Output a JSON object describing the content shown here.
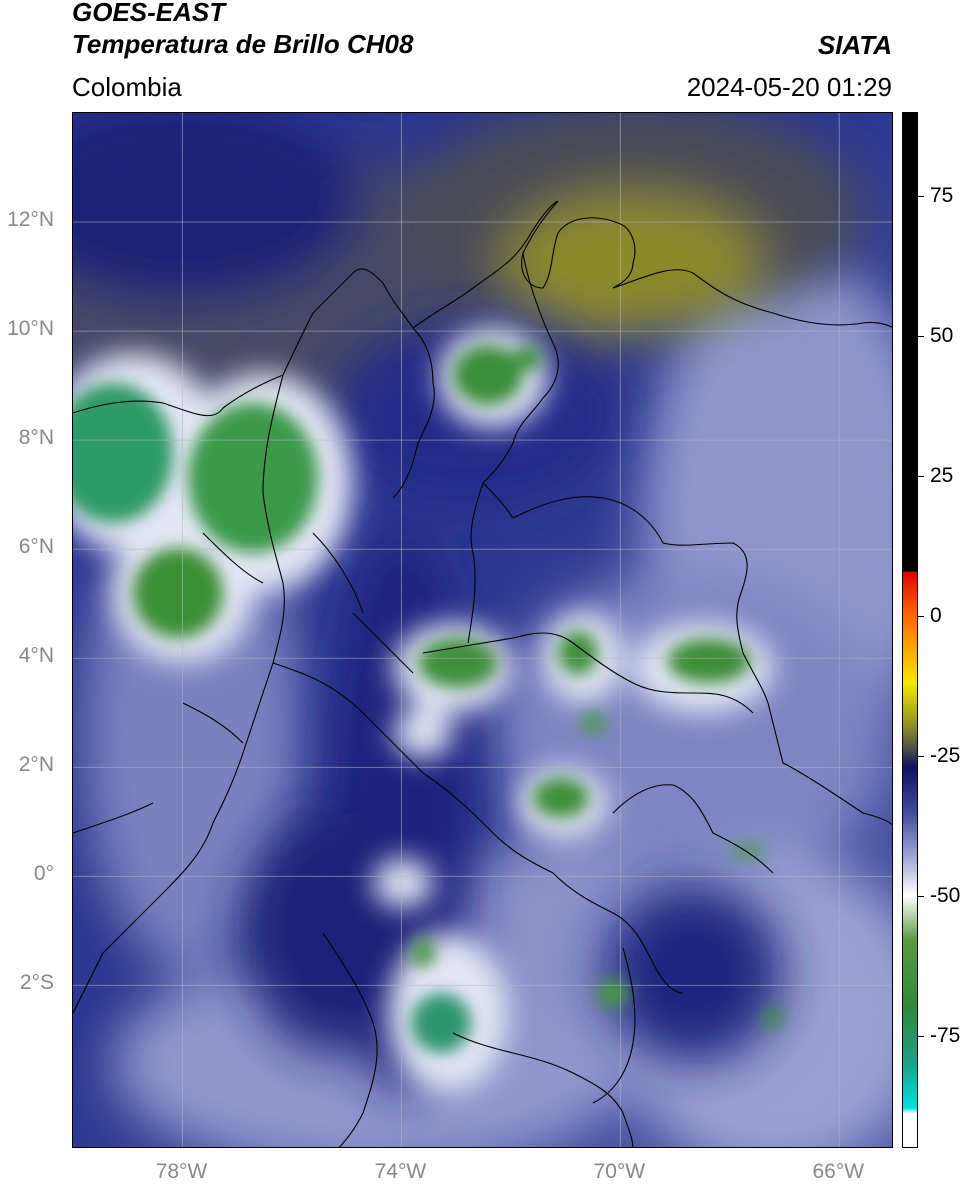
{
  "header": {
    "title_line1": "GOES-EAST",
    "title_line2": "Temperatura de Brillo CH08",
    "region": "Colombia",
    "agency": "SIATA",
    "timestamp": "2024-05-20 01:29"
  },
  "map": {
    "lon_range": [
      -80,
      -65
    ],
    "lat_range": [
      -5,
      14
    ],
    "lat_ticks": [
      {
        "value": 12,
        "label": "12°N"
      },
      {
        "value": 10,
        "label": "10°N"
      },
      {
        "value": 8,
        "label": "8°N"
      },
      {
        "value": 6,
        "label": "6°N"
      },
      {
        "value": 4,
        "label": "4°N"
      },
      {
        "value": 2,
        "label": "2°N"
      },
      {
        "value": 0,
        "label": "0°"
      },
      {
        "value": -2,
        "label": "2°S"
      }
    ],
    "lon_ticks": [
      {
        "value": -78,
        "label": "78°W"
      },
      {
        "value": -74,
        "label": "74°W"
      },
      {
        "value": -70,
        "label": "70°W"
      },
      {
        "value": -66,
        "label": "66°W"
      }
    ],
    "colors": {
      "deep_blue": "#1a237e",
      "mid_blue": "#3d4b9e",
      "pale": "#c7cbe6",
      "green": "#3f8f3a",
      "olive": "#8a8a2a",
      "grey_olive": "#5a5a55"
    }
  },
  "colorbar": {
    "range": [
      -95,
      90
    ],
    "ticks": [
      {
        "value": 75,
        "label": "75"
      },
      {
        "value": 50,
        "label": "50"
      },
      {
        "value": 25,
        "label": "25"
      },
      {
        "value": 0,
        "label": "0"
      },
      {
        "value": -25,
        "label": "-25"
      },
      {
        "value": -50,
        "label": "-50"
      },
      {
        "value": -75,
        "label": "-75"
      }
    ],
    "stops": [
      {
        "value": 90,
        "color": "#000000"
      },
      {
        "value": 8,
        "color": "#000000"
      },
      {
        "value": 7.9,
        "color": "#e00000"
      },
      {
        "value": 0,
        "color": "#ff6a00"
      },
      {
        "value": -12,
        "color": "#f5e800"
      },
      {
        "value": -20,
        "color": "#8a8a2a"
      },
      {
        "value": -24,
        "color": "#4a4a4a"
      },
      {
        "value": -27,
        "color": "#101060"
      },
      {
        "value": -35,
        "color": "#3d4b9e"
      },
      {
        "value": -45,
        "color": "#b8bde0"
      },
      {
        "value": -50,
        "color": "#ffffff"
      },
      {
        "value": -58,
        "color": "#5a9a40"
      },
      {
        "value": -70,
        "color": "#2f8a3a"
      },
      {
        "value": -80,
        "color": "#1fa08a"
      },
      {
        "value": -88,
        "color": "#00e0e0"
      },
      {
        "value": -89,
        "color": "#ffffff"
      },
      {
        "value": -95,
        "color": "#ffffff"
      }
    ]
  }
}
